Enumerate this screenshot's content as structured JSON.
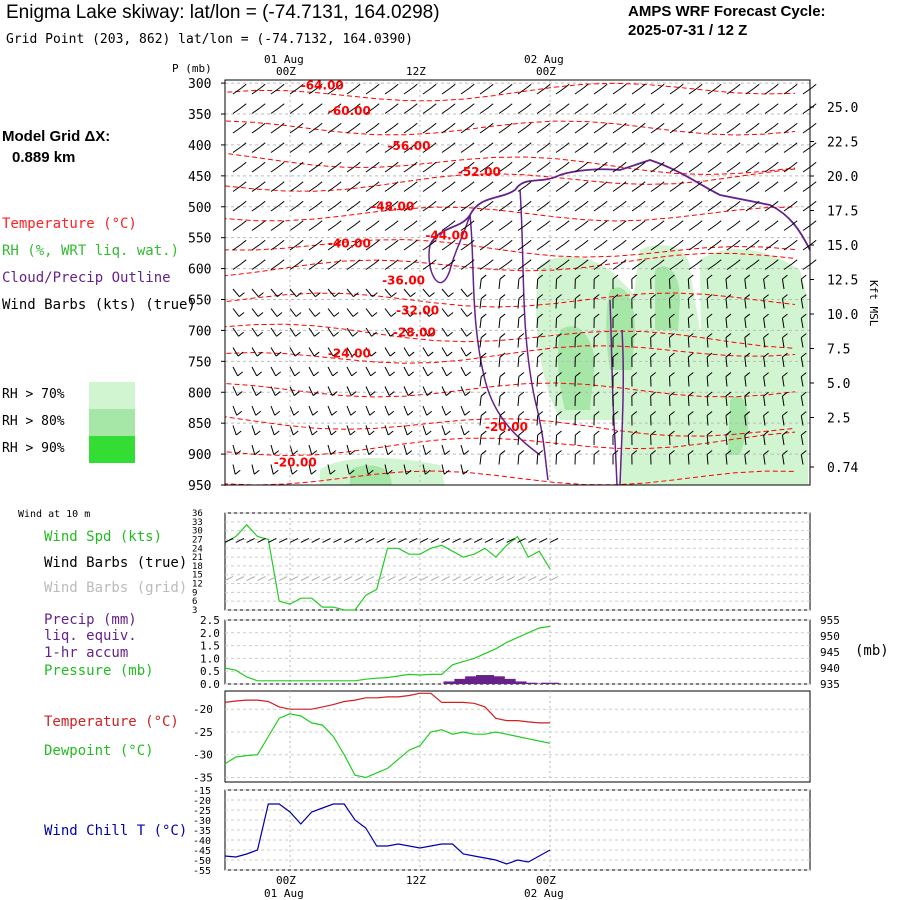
{
  "title": "Enigma Lake skiway:  lat/lon = (-74.7131, 164.0298)",
  "grid_point": "Grid Point (203, 862) lat/lon = (-74.7132, 164.0390)",
  "cycle": {
    "line1": "AMPS WRF Forecast Cycle:",
    "line2": "2025-07-31 / 12  Z"
  },
  "model_grid": {
    "line1": "Model Grid ΔX:",
    "line2": "0.889 km"
  },
  "legend": {
    "temperature": "Temperature (°C)",
    "rh": "RH (%, WRT liq. wat.)",
    "cloud": "Cloud/Precip Outline",
    "wind": "Wind Barbs (kts) (true)",
    "rh70": "RH > 70%",
    "rh80": "RH > 80%",
    "rh90": "RH > 90%"
  },
  "colors": {
    "temperature": "#ff0000",
    "rh": "#33bb33",
    "cloud": "#662288",
    "wind": "#000000",
    "dewpoint": "#22cc22",
    "windchill": "#0000aa",
    "rh70": "#d0f5d0",
    "rh80": "#a6e6a6",
    "rh90": "#33dd33",
    "grid": "#cccccc"
  },
  "chart_data": [
    {
      "type": "contour",
      "name_axis_left": "P (mb)",
      "axis_right_label": "Kft MSL",
      "pressure_ticks": [
        300,
        350,
        400,
        450,
        500,
        550,
        600,
        650,
        700,
        750,
        800,
        850,
        900,
        950
      ],
      "pressure_range": [
        295,
        950
      ],
      "height_ticks": [
        "25.0",
        "22.5",
        "20.0",
        "17.5",
        "15.0",
        "12.5",
        "10.0",
        "7.5",
        "5.0",
        "2.5",
        "0.74"
      ],
      "time_range_hours": [
        -6,
        48
      ],
      "time_ticks": [
        {
          "h": 0,
          "top": "01 Aug",
          "label": "00Z"
        },
        {
          "h": 12,
          "top": "",
          "label": "12Z"
        },
        {
          "h": 24,
          "top": "02 Aug",
          "label": "00Z"
        }
      ],
      "temperature_labels": [
        {
          "h": 1.0,
          "p": 310,
          "label": "-64.00"
        },
        {
          "h": 3.5,
          "p": 352,
          "label": "-60.00"
        },
        {
          "h": 9.0,
          "p": 408,
          "label": "-56.00"
        },
        {
          "h": 15.5,
          "p": 450,
          "label": "-52.00"
        },
        {
          "h": 7.5,
          "p": 506,
          "label": "-48.00"
        },
        {
          "h": 12.5,
          "p": 553,
          "label": "-44.00"
        },
        {
          "h": 3.5,
          "p": 566,
          "label": "-40.00"
        },
        {
          "h": 8.5,
          "p": 626,
          "label": "-36.00"
        },
        {
          "h": 9.8,
          "p": 674,
          "label": "-32.00"
        },
        {
          "h": 9.5,
          "p": 710,
          "label": "-28.00"
        },
        {
          "h": 3.5,
          "p": 744,
          "label": "-24.00"
        },
        {
          "h": 18.0,
          "p": 863,
          "label": "-20.00"
        },
        {
          "h": -1.5,
          "p": 920,
          "label": "-20.00"
        }
      ]
    },
    {
      "type": "line",
      "name_axis_left": "Wind at 10 m",
      "y_ticks": [
        3,
        6,
        9,
        12,
        15,
        18,
        21,
        24,
        27,
        30,
        33,
        36
      ],
      "ylim": [
        3,
        36
      ],
      "labels": {
        "speed": "Wind Spd (kts)",
        "barbs_true": "Wind Barbs (true)",
        "barbs_grid": "Wind Barbs (grid)"
      },
      "x": [
        -6,
        -5,
        -4,
        -3,
        -2,
        -1,
        0,
        1,
        2,
        3,
        4,
        5,
        6,
        7,
        8,
        9,
        10,
        11,
        12,
        13,
        14,
        15,
        16,
        17,
        18,
        19,
        20,
        21,
        22,
        23,
        24
      ],
      "series": [
        {
          "name": "Wind Spd (kts)",
          "values": [
            26,
            28,
            32,
            28,
            27,
            6,
            5,
            7,
            7,
            4,
            4,
            3,
            3,
            8,
            10,
            24,
            24,
            22,
            22,
            24,
            25,
            23,
            21,
            22,
            24,
            21,
            25,
            28,
            21,
            23,
            17
          ]
        }
      ]
    },
    {
      "type": "line",
      "labels": {
        "precip1": "Precip (mm)",
        "precip2": "liq. equiv.",
        "precip3": "1-hr accum",
        "pressure": "Pressure (mb)"
      },
      "y_ticks_left": [
        "0.0",
        "0.5",
        "1.0",
        "1.5",
        "2.0",
        "2.5"
      ],
      "ylim_left": [
        0,
        2.5
      ],
      "y_ticks_right": [
        935,
        940,
        945,
        950,
        955
      ],
      "ylim_right": [
        935,
        955
      ],
      "unit_right": "(mb)",
      "x": [
        -6,
        -5,
        -4,
        -3,
        -2,
        -1,
        0,
        1,
        2,
        3,
        4,
        5,
        6,
        7,
        8,
        9,
        10,
        11,
        12,
        13,
        14,
        15,
        16,
        17,
        18,
        19,
        20,
        21,
        22,
        23,
        24
      ],
      "series": [
        {
          "name": "Pressure (mb)",
          "values": [
            940,
            939.3,
            937.2,
            936,
            936,
            936,
            936,
            936,
            936,
            936,
            936,
            936,
            936,
            936.5,
            936.8,
            937,
            937.5,
            938,
            937.8,
            938,
            938,
            941,
            942,
            943,
            944.5,
            946,
            948,
            949.5,
            951,
            952.5,
            953
          ]
        },
        {
          "name": "Precip (mm)",
          "values": [
            0,
            0,
            0,
            0,
            0,
            0,
            0,
            0,
            0,
            0,
            0,
            0,
            0,
            0,
            0,
            0,
            0,
            0,
            0,
            0,
            0,
            0.1,
            0.2,
            0.3,
            0.35,
            0.3,
            0.2,
            0.1,
            0.05,
            0.02,
            0.05
          ]
        }
      ]
    },
    {
      "type": "line",
      "labels": {
        "temperature": "Temperature (°C)",
        "dewpoint": "Dewpoint (°C)"
      },
      "y_ticks": [
        -35,
        -30,
        -25,
        -20
      ],
      "ylim": [
        -36,
        -16
      ],
      "x": [
        -6,
        -5,
        -4,
        -3,
        -2,
        -1,
        0,
        1,
        2,
        3,
        4,
        5,
        6,
        7,
        8,
        9,
        10,
        11,
        12,
        13,
        14,
        15,
        16,
        17,
        18,
        19,
        20,
        21,
        22,
        23,
        24
      ],
      "series": [
        {
          "name": "Temperature (°C)",
          "values": [
            -18.5,
            -18.2,
            -18,
            -18,
            -18.3,
            -19.5,
            -20,
            -20,
            -20,
            -19.5,
            -19,
            -18.3,
            -18,
            -17.5,
            -17.5,
            -17.3,
            -17.3,
            -17,
            -16.5,
            -16.5,
            -18.5,
            -18.5,
            -18.5,
            -18.7,
            -19.5,
            -22,
            -22.5,
            -22.5,
            -22.8,
            -23,
            -23
          ]
        },
        {
          "name": "Dewpoint (°C)",
          "values": [
            -32,
            -30.5,
            -30.2,
            -30,
            -26,
            -22,
            -21,
            -21.5,
            -23,
            -23.5,
            -26,
            -30,
            -34.5,
            -35,
            -34,
            -33,
            -31,
            -29,
            -28,
            -25,
            -24.5,
            -25.5,
            -25,
            -25.5,
            -25.5,
            -25,
            -25.5,
            -26,
            -26.5,
            -27,
            -27.5
          ]
        }
      ]
    },
    {
      "type": "line",
      "labels": {
        "windchill": "Wind Chill T (°C)"
      },
      "y_ticks": [
        -55,
        -50,
        -45,
        -40,
        -35,
        -30,
        -25,
        -20,
        -15
      ],
      "ylim": [
        -55,
        -15
      ],
      "x": [
        -6,
        -5,
        -4,
        -3,
        -2,
        -1,
        0,
        1,
        2,
        3,
        4,
        5,
        6,
        7,
        8,
        9,
        10,
        11,
        12,
        13,
        14,
        15,
        16,
        17,
        18,
        19,
        20,
        21,
        22,
        23,
        24
      ],
      "series": [
        {
          "name": "Wind Chill T (°C)",
          "values": [
            -48,
            -48.5,
            -47,
            -45,
            -22,
            -22,
            -26,
            -32,
            -26,
            -24,
            -22,
            -22,
            -30,
            -34,
            -43,
            -43,
            -42,
            -43,
            -44,
            -43,
            -42,
            -42,
            -47,
            -48,
            -49,
            -50,
            -52,
            -50,
            -51,
            -48,
            -45
          ]
        }
      ]
    }
  ]
}
